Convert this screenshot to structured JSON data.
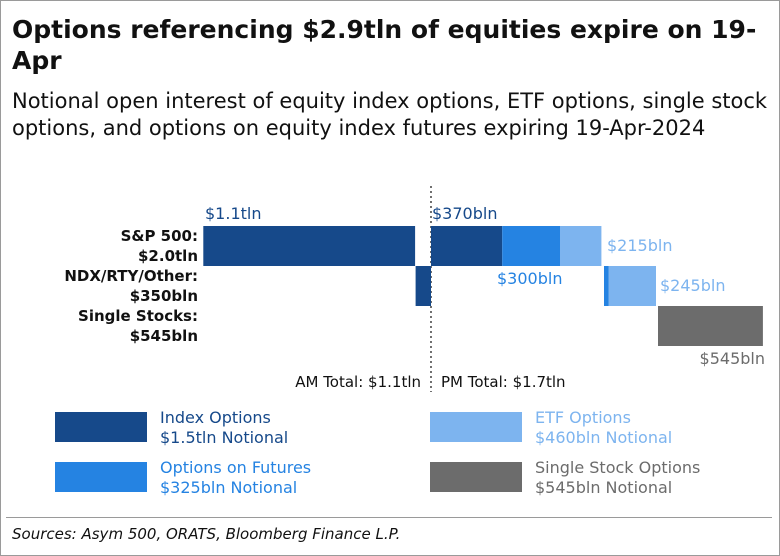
{
  "title": "Options referencing $2.9tln of equities expire on 19-Apr",
  "subtitle": "Notional open interest of equity index options, ETF options, single stock options, and options on equity index futures expiring 19-Apr-2024",
  "source": "Sources: Asym 500, ORATS, Bloomberg Finance L.P.",
  "colors": {
    "index_options": "#16498a",
    "options_on_futures": "#2583e2",
    "etf_options": "#7db4ef",
    "single_stock_options": "#6c6c6c"
  },
  "chart_data": {
    "type": "bar",
    "orientation": "horizontal",
    "layout": "split AM / PM around a divider",
    "unit": "$bln notional",
    "categories": [
      "S&P 500: $2.0tln",
      "NDX/RTY/Other: $350bln",
      "Single Stocks: $545bln"
    ],
    "segments": [
      {
        "category": 0,
        "session": "AM",
        "series": "Index Options",
        "value": 1100
      },
      {
        "category": 0,
        "session": "PM",
        "series": "Index Options",
        "value": 370
      },
      {
        "category": 0,
        "session": "PM",
        "series": "Options on Futures",
        "value": 300
      },
      {
        "category": 0,
        "session": "PM",
        "series": "ETF Options",
        "value": 215
      },
      {
        "category": 1,
        "session": "AM",
        "series": "Index Options",
        "value": 80
      },
      {
        "category": 1,
        "session": "PM",
        "series": "Options on Futures",
        "value": 25
      },
      {
        "category": 1,
        "session": "PM",
        "series": "ETF Options",
        "value": 245
      },
      {
        "category": 2,
        "session": "PM",
        "series": "Single Stock Options",
        "value": 545
      }
    ],
    "data_labels": [
      "$1.1tln",
      "$370bln",
      "$300bln",
      "$215bln",
      "$245bln",
      "$545bln"
    ],
    "totals": [
      "AM Total: $1.1tln",
      "PM Total: $1.7tln"
    ],
    "legend": [
      {
        "name": "Index Options",
        "detail": "$1.5tln Notional",
        "key": "index_options"
      },
      {
        "name": "ETF Options",
        "detail": "$460bln Notional",
        "key": "etf_options"
      },
      {
        "name": "Options on Futures",
        "detail": "$325bln Notional",
        "key": "options_on_futures"
      },
      {
        "name": "Single Stock Options",
        "detail": "$545bln Notional",
        "key": "single_stock_options"
      }
    ],
    "legend_placement": "bottom",
    "grid": false
  }
}
